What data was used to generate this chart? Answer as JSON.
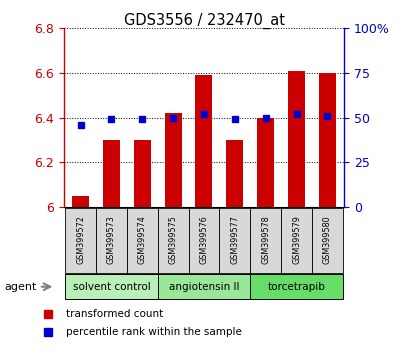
{
  "title": "GDS3556 / 232470_at",
  "samples": [
    "GSM399572",
    "GSM399573",
    "GSM399574",
    "GSM399575",
    "GSM399576",
    "GSM399577",
    "GSM399578",
    "GSM399579",
    "GSM399580"
  ],
  "red_values": [
    6.05,
    6.3,
    6.3,
    6.42,
    6.59,
    6.3,
    6.4,
    6.61,
    6.6
  ],
  "blue_values": [
    46,
    49,
    49,
    50,
    52,
    49,
    50,
    52,
    51
  ],
  "ylim_left": [
    6.0,
    6.8
  ],
  "ylim_right": [
    0,
    100
  ],
  "yticks_left": [
    6.0,
    6.2,
    6.4,
    6.6,
    6.8
  ],
  "ytick_labels_left": [
    "6",
    "6.2",
    "6.4",
    "6.6",
    "6.8"
  ],
  "yticks_right": [
    0,
    25,
    50,
    75,
    100
  ],
  "ytick_labels_right": [
    "0",
    "25",
    "50",
    "75",
    "100%"
  ],
  "ybase": 6.0,
  "bar_color": "#cc0000",
  "dot_color": "#0000cc",
  "group_labels": [
    "solvent control",
    "angiotensin II",
    "torcetrapib"
  ],
  "group_colors": [
    "#b8f0b8",
    "#99e899",
    "#66dd66"
  ],
  "group_ranges": [
    [
      0,
      2
    ],
    [
      3,
      5
    ],
    [
      6,
      8
    ]
  ],
  "agent_label": "agent",
  "legend_red": "transformed count",
  "legend_blue": "percentile rank within the sample",
  "bar_width": 0.55,
  "tick_color_left": "#cc0000",
  "tick_color_right": "#0000cc",
  "sample_bg": "#d8d8d8"
}
